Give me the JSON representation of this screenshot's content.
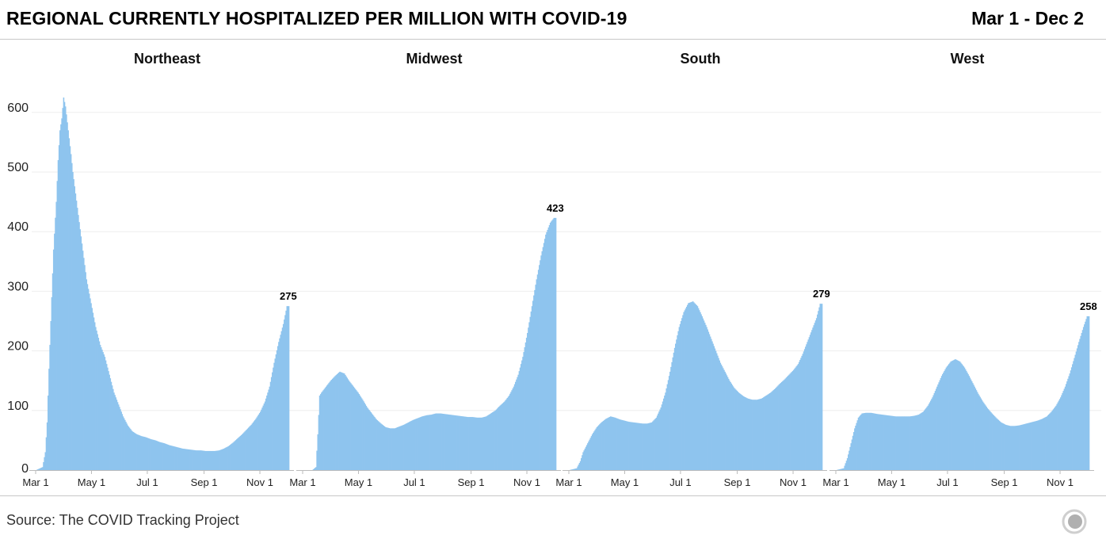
{
  "header": {
    "title": "REGIONAL CURRENTLY HOSPITALIZED PER MILLION WITH COVID-19",
    "date_range": "Mar 1 - Dec 2"
  },
  "footer": {
    "source": "Source: The COVID Tracking Project",
    "logo_icon": "covid-tracking-project-logo-icon"
  },
  "colors": {
    "bar": "#8EC4EE",
    "grid": "#eeeeee",
    "axis": "#bbbbbb"
  },
  "chart_data": {
    "type": "area",
    "title": "REGIONAL CURRENTLY HOSPITALIZED PER MILLION WITH COVID-19",
    "xlabel": "",
    "ylabel": "",
    "ylim": [
      0,
      640
    ],
    "yticks": [
      0,
      100,
      200,
      300,
      400,
      500,
      600
    ],
    "grid": true,
    "x_range": [
      "Mar 1",
      "Dec 2"
    ],
    "x_tick_labels": [
      "Mar 1",
      "May 1",
      "Jul 1",
      "Sep 1",
      "Nov 1"
    ],
    "x_tick_days": [
      0,
      61,
      122,
      184,
      245
    ],
    "total_days": 277,
    "panels": [
      {
        "name": "Northeast",
        "end_label": "275",
        "keypoints": [
          [
            0,
            0
          ],
          [
            7,
            5
          ],
          [
            10,
            30
          ],
          [
            12,
            80
          ],
          [
            14,
            170
          ],
          [
            16,
            250
          ],
          [
            19,
            370
          ],
          [
            22,
            450
          ],
          [
            24,
            520
          ],
          [
            26,
            570
          ],
          [
            28,
            590
          ],
          [
            30,
            625
          ],
          [
            32,
            610
          ],
          [
            35,
            570
          ],
          [
            38,
            530
          ],
          [
            40,
            500
          ],
          [
            45,
            440
          ],
          [
            50,
            380
          ],
          [
            55,
            320
          ],
          [
            60,
            280
          ],
          [
            65,
            240
          ],
          [
            70,
            210
          ],
          [
            75,
            190
          ],
          [
            80,
            160
          ],
          [
            85,
            130
          ],
          [
            90,
            110
          ],
          [
            95,
            90
          ],
          [
            100,
            75
          ],
          [
            105,
            65
          ],
          [
            110,
            60
          ],
          [
            115,
            57
          ],
          [
            120,
            55
          ],
          [
            125,
            52
          ],
          [
            130,
            50
          ],
          [
            135,
            47
          ],
          [
            140,
            45
          ],
          [
            145,
            42
          ],
          [
            150,
            40
          ],
          [
            155,
            38
          ],
          [
            160,
            36
          ],
          [
            165,
            35
          ],
          [
            170,
            34
          ],
          [
            175,
            33
          ],
          [
            180,
            33
          ],
          [
            185,
            32
          ],
          [
            190,
            32
          ],
          [
            195,
            32
          ],
          [
            200,
            33
          ],
          [
            205,
            36
          ],
          [
            210,
            40
          ],
          [
            215,
            46
          ],
          [
            220,
            53
          ],
          [
            225,
            60
          ],
          [
            230,
            68
          ],
          [
            235,
            76
          ],
          [
            240,
            86
          ],
          [
            245,
            98
          ],
          [
            250,
            115
          ],
          [
            255,
            140
          ],
          [
            260,
            180
          ],
          [
            265,
            215
          ],
          [
            270,
            245
          ],
          [
            274,
            275
          ],
          [
            276,
            275
          ]
        ]
      },
      {
        "name": "Midwest",
        "end_label": "423",
        "keypoints": [
          [
            0,
            0
          ],
          [
            10,
            0
          ],
          [
            14,
            5
          ],
          [
            16,
            60
          ],
          [
            18,
            125
          ],
          [
            20,
            130
          ],
          [
            25,
            140
          ],
          [
            30,
            150
          ],
          [
            35,
            158
          ],
          [
            40,
            165
          ],
          [
            45,
            162
          ],
          [
            50,
            150
          ],
          [
            55,
            140
          ],
          [
            60,
            130
          ],
          [
            65,
            118
          ],
          [
            70,
            105
          ],
          [
            75,
            95
          ],
          [
            80,
            85
          ],
          [
            85,
            78
          ],
          [
            90,
            72
          ],
          [
            95,
            70
          ],
          [
            100,
            70
          ],
          [
            105,
            73
          ],
          [
            110,
            76
          ],
          [
            115,
            80
          ],
          [
            120,
            84
          ],
          [
            125,
            87
          ],
          [
            130,
            90
          ],
          [
            135,
            92
          ],
          [
            140,
            93
          ],
          [
            145,
            95
          ],
          [
            150,
            95
          ],
          [
            155,
            94
          ],
          [
            160,
            93
          ],
          [
            165,
            92
          ],
          [
            170,
            91
          ],
          [
            175,
            90
          ],
          [
            180,
            89
          ],
          [
            185,
            89
          ],
          [
            190,
            88
          ],
          [
            195,
            88
          ],
          [
            200,
            90
          ],
          [
            205,
            95
          ],
          [
            210,
            100
          ],
          [
            215,
            108
          ],
          [
            220,
            115
          ],
          [
            225,
            125
          ],
          [
            230,
            140
          ],
          [
            235,
            160
          ],
          [
            240,
            190
          ],
          [
            245,
            230
          ],
          [
            250,
            275
          ],
          [
            255,
            320
          ],
          [
            260,
            360
          ],
          [
            265,
            395
          ],
          [
            270,
            415
          ],
          [
            274,
            423
          ],
          [
            276,
            423
          ]
        ]
      },
      {
        "name": "South",
        "end_label": "279",
        "keypoints": [
          [
            0,
            0
          ],
          [
            8,
            3
          ],
          [
            12,
            15
          ],
          [
            15,
            30
          ],
          [
            20,
            45
          ],
          [
            25,
            60
          ],
          [
            30,
            72
          ],
          [
            35,
            80
          ],
          [
            40,
            86
          ],
          [
            45,
            90
          ],
          [
            50,
            88
          ],
          [
            55,
            85
          ],
          [
            60,
            83
          ],
          [
            65,
            81
          ],
          [
            70,
            80
          ],
          [
            75,
            79
          ],
          [
            80,
            78
          ],
          [
            85,
            78
          ],
          [
            90,
            80
          ],
          [
            95,
            88
          ],
          [
            100,
            105
          ],
          [
            105,
            130
          ],
          [
            110,
            165
          ],
          [
            115,
            205
          ],
          [
            120,
            240
          ],
          [
            125,
            265
          ],
          [
            130,
            280
          ],
          [
            135,
            283
          ],
          [
            140,
            275
          ],
          [
            145,
            258
          ],
          [
            150,
            240
          ],
          [
            155,
            220
          ],
          [
            160,
            200
          ],
          [
            165,
            180
          ],
          [
            170,
            165
          ],
          [
            175,
            150
          ],
          [
            180,
            138
          ],
          [
            185,
            130
          ],
          [
            190,
            124
          ],
          [
            195,
            120
          ],
          [
            200,
            118
          ],
          [
            205,
            118
          ],
          [
            210,
            120
          ],
          [
            215,
            125
          ],
          [
            220,
            130
          ],
          [
            225,
            137
          ],
          [
            230,
            145
          ],
          [
            235,
            152
          ],
          [
            240,
            160
          ],
          [
            245,
            168
          ],
          [
            250,
            178
          ],
          [
            255,
            195
          ],
          [
            260,
            215
          ],
          [
            265,
            235
          ],
          [
            270,
            255
          ],
          [
            274,
            279
          ],
          [
            276,
            279
          ]
        ]
      },
      {
        "name": "West",
        "end_label": "258",
        "keypoints": [
          [
            0,
            0
          ],
          [
            8,
            3
          ],
          [
            12,
            20
          ],
          [
            16,
            45
          ],
          [
            20,
            70
          ],
          [
            24,
            88
          ],
          [
            28,
            95
          ],
          [
            32,
            96
          ],
          [
            38,
            96
          ],
          [
            45,
            94
          ],
          [
            50,
            93
          ],
          [
            55,
            92
          ],
          [
            60,
            91
          ],
          [
            65,
            90
          ],
          [
            70,
            90
          ],
          [
            75,
            90
          ],
          [
            80,
            90
          ],
          [
            85,
            91
          ],
          [
            90,
            93
          ],
          [
            95,
            98
          ],
          [
            100,
            108
          ],
          [
            105,
            122
          ],
          [
            110,
            140
          ],
          [
            115,
            158
          ],
          [
            120,
            172
          ],
          [
            125,
            182
          ],
          [
            130,
            186
          ],
          [
            135,
            182
          ],
          [
            140,
            172
          ],
          [
            145,
            158
          ],
          [
            150,
            143
          ],
          [
            155,
            128
          ],
          [
            160,
            115
          ],
          [
            165,
            104
          ],
          [
            170,
            95
          ],
          [
            175,
            87
          ],
          [
            180,
            80
          ],
          [
            185,
            76
          ],
          [
            190,
            74
          ],
          [
            195,
            74
          ],
          [
            200,
            75
          ],
          [
            205,
            77
          ],
          [
            210,
            79
          ],
          [
            215,
            81
          ],
          [
            220,
            83
          ],
          [
            225,
            86
          ],
          [
            230,
            90
          ],
          [
            235,
            98
          ],
          [
            240,
            108
          ],
          [
            245,
            122
          ],
          [
            250,
            140
          ],
          [
            255,
            162
          ],
          [
            260,
            188
          ],
          [
            265,
            215
          ],
          [
            270,
            240
          ],
          [
            274,
            258
          ],
          [
            276,
            258
          ]
        ]
      }
    ]
  }
}
